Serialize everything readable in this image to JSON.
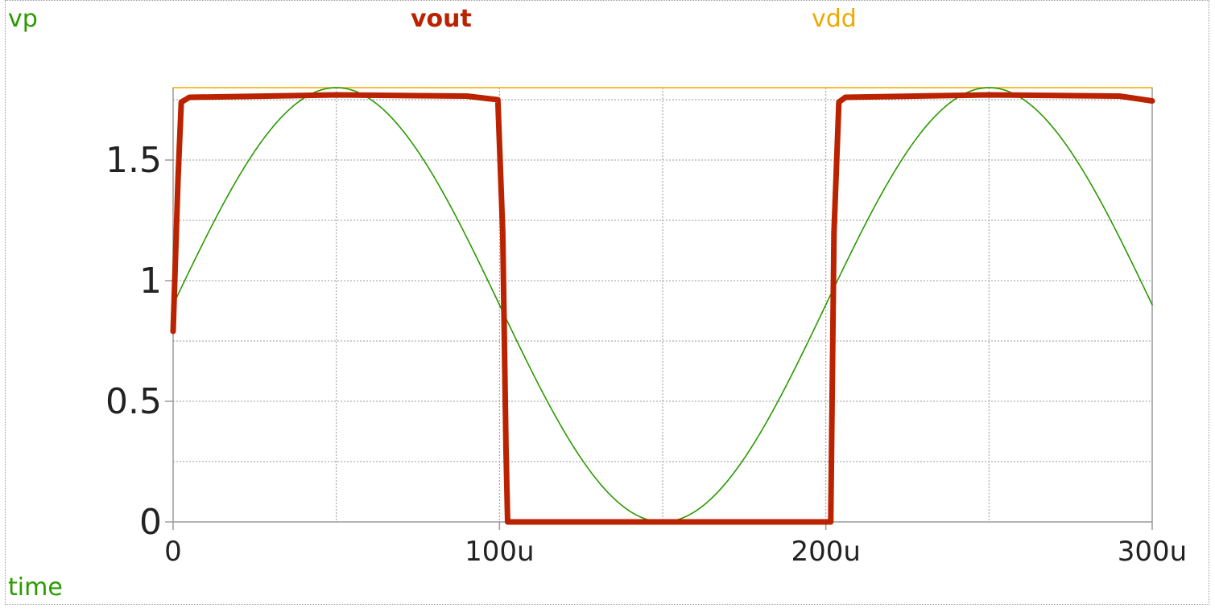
{
  "chart_data": {
    "type": "line",
    "x_axis_label": "time",
    "xlim": [
      0,
      0.0003
    ],
    "ylim": [
      0,
      1.8
    ],
    "x_ticks": [
      {
        "value": 0,
        "label": "0"
      },
      {
        "value": 0.0001,
        "label": "100u"
      },
      {
        "value": 0.0002,
        "label": "200u"
      },
      {
        "value": 0.0003,
        "label": "300u"
      }
    ],
    "y_ticks": [
      {
        "value": 0,
        "label": "0"
      },
      {
        "value": 0.5,
        "label": "0.5"
      },
      {
        "value": 1,
        "label": "1"
      },
      {
        "value": 1.5,
        "label": "1.5"
      }
    ],
    "x_minor_step": 5e-05,
    "y_minor_step": 0.25,
    "grid": true,
    "series": [
      {
        "name": "vp",
        "color": "#2a9a00",
        "bold": false,
        "function": "sine",
        "offset": 0.9,
        "amplitude": 0.9,
        "frequency": 5000
      },
      {
        "name": "vout",
        "color": "#bb2200",
        "bold": true,
        "points": [
          [
            0,
            0.79
          ],
          [
            1.5e-06,
            1.42
          ],
          [
            2.5e-06,
            1.74
          ],
          [
            5e-06,
            1.76
          ],
          [
            5e-05,
            1.77
          ],
          [
            9e-05,
            1.765
          ],
          [
            9.95e-05,
            1.75
          ],
          [
            0.000101,
            1.2
          ],
          [
            0.000102,
            0.3
          ],
          [
            0.0001025,
            0.0
          ],
          [
            0.00015,
            0.0
          ],
          [
            0.0002015,
            0.0
          ],
          [
            0.0002025,
            1.2
          ],
          [
            0.000204,
            1.74
          ],
          [
            0.000206,
            1.76
          ],
          [
            0.00025,
            1.77
          ],
          [
            0.00029,
            1.765
          ],
          [
            0.0003,
            1.745
          ]
        ]
      },
      {
        "name": "vdd",
        "color": "#f0a800",
        "bold": false,
        "points": [
          [
            0,
            1.8
          ],
          [
            0.0003,
            1.8
          ]
        ]
      }
    ]
  }
}
